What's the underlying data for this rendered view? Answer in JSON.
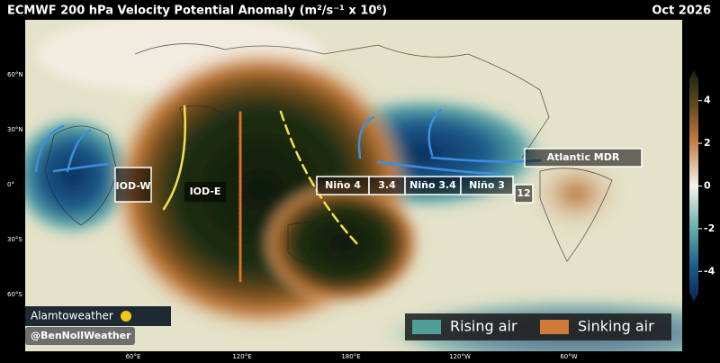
{
  "header": {
    "title": "ECMWF 200 hPa Velocity Potential Anomaly (m²/s⁻¹ x 10⁶)",
    "date": "Oct 2026"
  },
  "lat_labels": [
    "60°N",
    "30°N",
    "0°",
    "30°S",
    "60°S"
  ],
  "lon_labels": [
    "60°E",
    "120°E",
    "180°E",
    "120°W",
    "60°W"
  ],
  "regions": [
    "IOD-W",
    "IOD-E",
    "Niño 4",
    "3.4",
    "Niño 3.4",
    "Niño 3",
    "12",
    "Atlantic MDR"
  ],
  "colorbar": {
    "lim": [
      -5,
      5
    ],
    "ticks": [
      4,
      2,
      0,
      -2,
      -4
    ]
  },
  "legend": [
    "Rising air",
    "Sinking air"
  ],
  "credits": [
    "Alamtoweather",
    "@BenNollWeather"
  ]
}
